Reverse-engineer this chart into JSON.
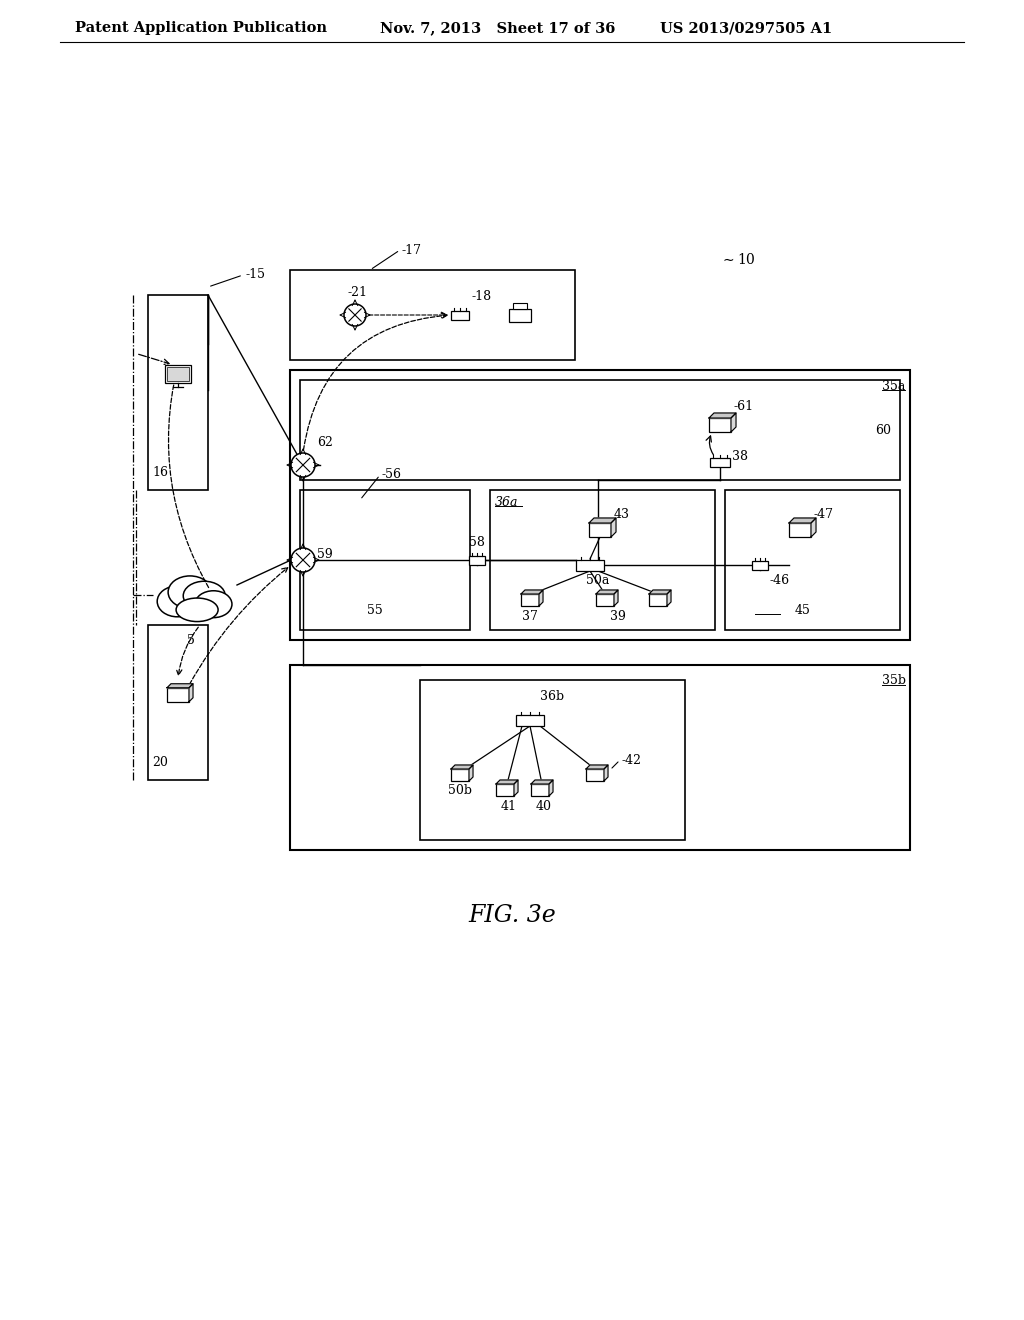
{
  "bg_color": "#ffffff",
  "header_left": "Patent Application Publication",
  "header_mid": "Nov. 7, 2013   Sheet 17 of 36",
  "header_right": "US 2013/0297505 A1",
  "fig_label": "FIG. 3e"
}
